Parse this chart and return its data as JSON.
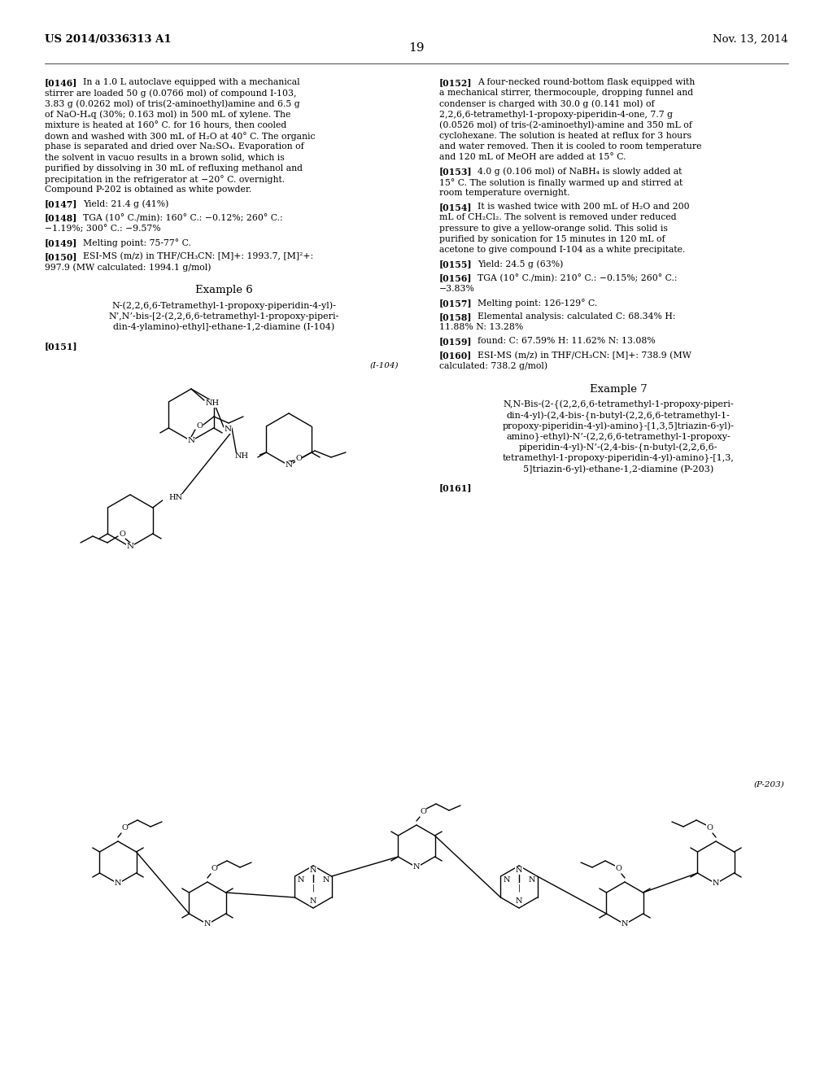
{
  "background": "#ffffff",
  "text_color": "#000000",
  "header_left": "US 2014/0336313 A1",
  "header_right": "Nov. 13, 2014",
  "page_num": "19",
  "left_paragraphs": [
    {
      "tag": "[0146]",
      "text": "In a 1.0 L autoclave equipped with a mechanical stirrer are loaded 50 g (0.0766 mol) of compound I-103, 3.83 g (0.0262 mol) of tris(2-aminoethyl)amine and 6.5 g of NaO-Hₐq (30%; 0.163 mol) in 500 mL of xylene. The mixture is heated at 160° C. for 16 hours, then cooled down and washed with 300 mL of H₂O at 40° C. The organic phase is separated and dried over Na₂SO₄. Evaporation of the solvent in vacuo results in a brown solid, which is purified by dissolving in 30 mL of refluxing methanol and precipitation in the refrigerator at −20° C. overnight. Compound P-202 is obtained as white powder."
    },
    {
      "tag": "[0147]",
      "text": "Yield: 21.4 g (41%)"
    },
    {
      "tag": "[0148]",
      "text": "TGA (10° C./min): 160° C.: −0.12%; 260° C.: −1.19%; 300° C.: −9.57%"
    },
    {
      "tag": "[0149]",
      "text": "Melting point: 75-77° C."
    },
    {
      "tag": "[0150]",
      "text": "ESI-MS (m/z) in THF/CH₃CN: [M]+: 1993.7, [M]²+: 997.9 (MW calculated: 1994.1 g/mol)"
    }
  ],
  "right_paragraphs": [
    {
      "tag": "[0152]",
      "text": "A four-necked round-bottom flask equipped with a mechanical stirrer, thermocouple, dropping funnel and condenser is charged with 30.0 g (0.141 mol) of 2,2,6,6-tetramethyl-1-propoxy-piperidin-4-one, 7.7 g (0.0526 mol) of tris-(2-aminoethyl)-amine and 350 mL of cyclohexane. The solution is heated at reflux for 3 hours and water removed. Then it is cooled to room temperature and 120 mL of MeOH are added at 15° C."
    },
    {
      "tag": "[0153]",
      "text": "4.0 g (0.106 mol) of NaBH₄ is slowly added at 15° C. The solution is finally warmed up and stirred at room temperature overnight."
    },
    {
      "tag": "[0154]",
      "text": "It is washed twice with 200 mL of H₂O and 200 mL of CH₂Cl₂. The solvent is removed under reduced pressure to give a yellow-orange solid. This solid is purified by sonication for 15 minutes in 120 mL of acetone to give compound I-104 as a white precipitate."
    },
    {
      "tag": "[0155]",
      "text": "Yield: 24.5 g (63%)"
    },
    {
      "tag": "[0156]",
      "text": "TGA (10° C./min): 210° C.: −0.15%; 260° C.: −3.83%"
    },
    {
      "tag": "[0157]",
      "text": "Melting point: 126-129° C."
    },
    {
      "tag": "[0158]",
      "text": "Elemental analysis: calculated C: 68.34% H: 11.88% N: 13.28%"
    },
    {
      "tag": "[0159]",
      "text": "found: C: 67.59% H: 11.62% N: 13.08%"
    },
    {
      "tag": "[0160]",
      "text": "ESI-MS (m/z) in THF/CH₃CN: [M]+: 738.9 (MW calculated: 738.2 g/mol)"
    }
  ],
  "example6_title": "Example 6",
  "example6_name": [
    "N-(2,2,6,6-Tetramethyl-1-propoxy-piperidin-4-yl)-",
    "N’,N’-bis-[2-(2,2,6,6-tetramethyl-1-propoxy-piperi-",
    "din-4-ylamino)-ethyl]-ethane-1,2-diamine (I-104)"
  ],
  "example6_tag": "[0151]",
  "example6_label": "(I-104)",
  "example7_title": "Example 7",
  "example7_name": [
    "N,N-Bis-(2-{(2,2,6,6-tetramethyl-1-propoxy-piperi-",
    "din-4-yl)-(2,4-bis-{n-butyl-(2,2,6,6-tetramethyl-1-",
    "propoxy-piperidin-4-yl)-amino}-[1,3,5]triazin-6-yl)-",
    "amino}-ethyl)-N’-(2,2,6,6-tetramethyl-1-propoxy-",
    "piperidin-4-yl)-N’-(2,4-bis-{n-butyl-(2,2,6,6-",
    "tetramethyl-1-propoxy-piperidin-4-yl)-amino}-[1,3,",
    "5]triazin-6-yl)-ethane-1,2-diamine (P-203)"
  ],
  "example7_tag": "[0161]",
  "example7_label": "(P-203)"
}
